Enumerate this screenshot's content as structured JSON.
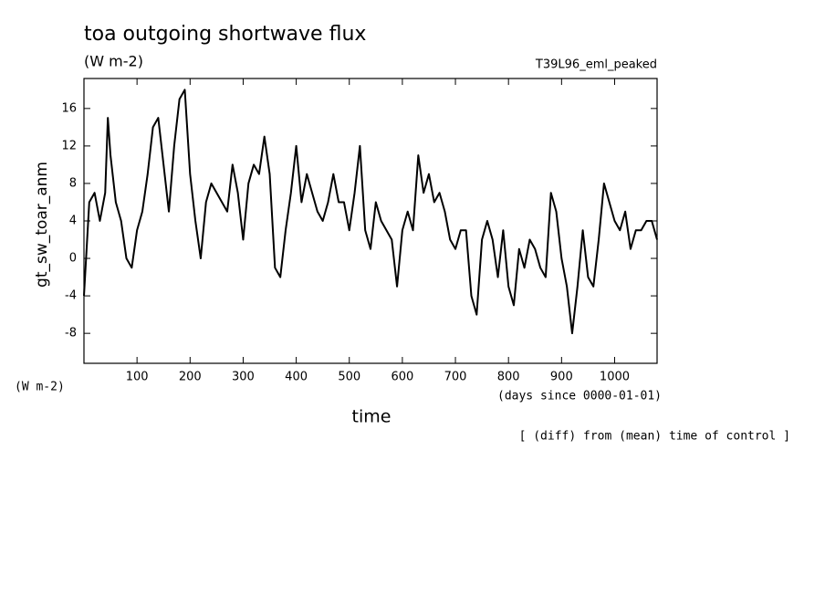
{
  "chart_data": {
    "type": "line",
    "title": "toa outgoing shortwave flux",
    "subtitle": "(W m-2)",
    "run_label": "T39L96_eml_peaked",
    "y_label": "gt_sw_toar_anm",
    "units_label": "(W m-2)",
    "x_units_label": "(days since 0000-01-01)",
    "x_label": "time",
    "note": "[ (diff) from (mean) time of control ]",
    "xlim": [
      0,
      1080
    ],
    "ylim": [
      -11.2,
      19.2
    ],
    "xticks": [
      100,
      200,
      300,
      400,
      500,
      600,
      700,
      800,
      900,
      1000
    ],
    "yticks": [
      -8,
      -4,
      0,
      4,
      8,
      12,
      16
    ],
    "x": [
      0,
      10,
      20,
      30,
      40,
      45,
      50,
      60,
      70,
      80,
      90,
      100,
      110,
      120,
      130,
      140,
      150,
      160,
      170,
      180,
      190,
      200,
      210,
      220,
      230,
      240,
      250,
      260,
      270,
      280,
      290,
      300,
      310,
      320,
      330,
      340,
      350,
      360,
      370,
      380,
      390,
      400,
      410,
      420,
      430,
      440,
      450,
      460,
      470,
      480,
      490,
      500,
      510,
      520,
      530,
      540,
      550,
      560,
      570,
      580,
      590,
      600,
      610,
      620,
      630,
      640,
      650,
      660,
      670,
      680,
      690,
      700,
      710,
      720,
      730,
      740,
      750,
      760,
      770,
      780,
      790,
      800,
      810,
      820,
      830,
      840,
      850,
      860,
      870,
      880,
      890,
      900,
      910,
      920,
      930,
      940,
      950,
      960,
      970,
      980,
      990,
      1000,
      1010,
      1020,
      1030,
      1040,
      1050,
      1060,
      1070,
      1080
    ],
    "series": [
      {
        "name": "gt_sw_toar_anm",
        "color": "#000000",
        "values": [
          -4,
          6,
          7,
          4,
          7,
          15,
          11,
          6,
          4,
          0,
          -1,
          3,
          5,
          9,
          14,
          15,
          10,
          5,
          12,
          17,
          18,
          9,
          4,
          0,
          6,
          8,
          7,
          6,
          5,
          10,
          7,
          2,
          8,
          10,
          9,
          13,
          9,
          -1,
          -2,
          3,
          7,
          12,
          6,
          9,
          7,
          5,
          4,
          6,
          9,
          6,
          6,
          3,
          7,
          12,
          3,
          1,
          6,
          4,
          3,
          2,
          -3,
          3,
          5,
          3,
          11,
          7,
          9,
          6,
          7,
          5,
          2,
          1,
          3,
          3,
          -4,
          -6,
          2,
          4,
          2,
          -2,
          3,
          -3,
          -5,
          1,
          -1,
          2,
          1,
          -1,
          -2,
          7,
          5,
          0,
          -3,
          -8,
          -3,
          3,
          -2,
          -3,
          2,
          8,
          6,
          4,
          3,
          5,
          1,
          3,
          3,
          4,
          4,
          2
        ]
      }
    ]
  }
}
